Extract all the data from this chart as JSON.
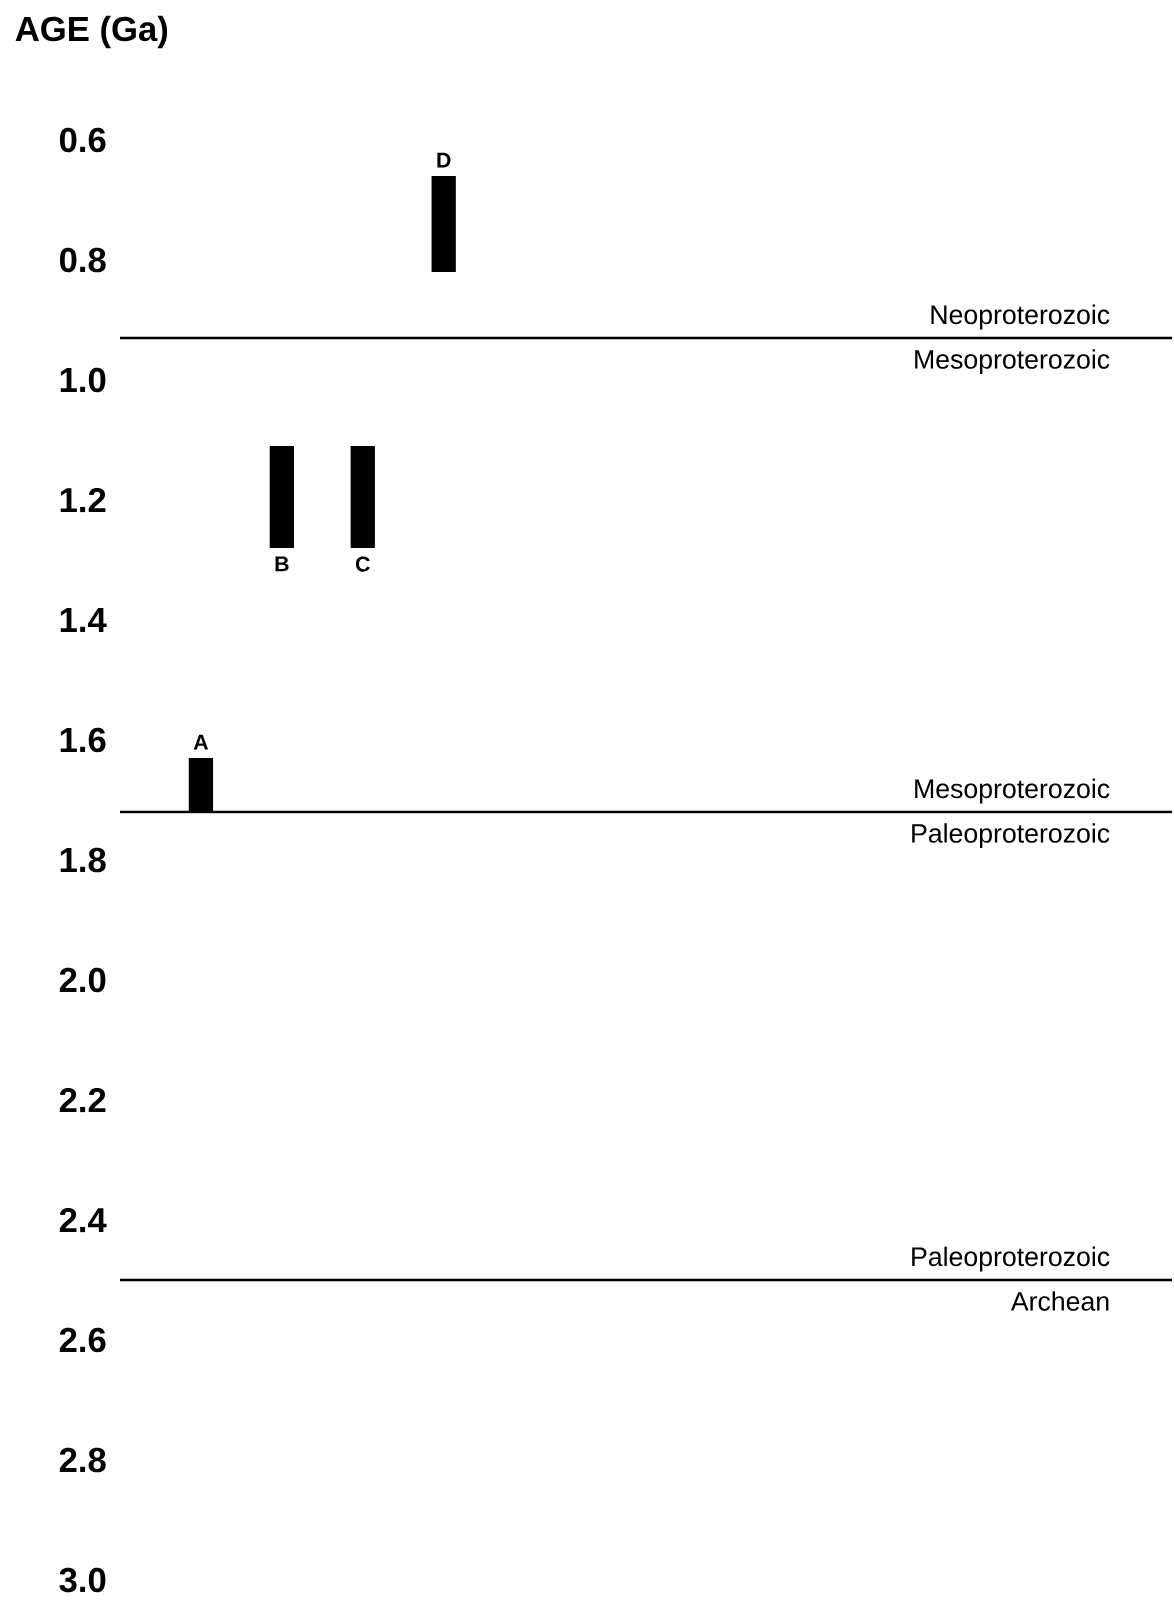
{
  "chart_data": {
    "type": "bar",
    "ylabel": "AGE (Ga)",
    "categories": [
      null,
      null,
      null,
      null
    ],
    "base": [
      1.63,
      1.11,
      1.11,
      0.66
    ],
    "values": [
      0.09,
      0.17,
      0.17,
      0.16
    ],
    "color": "#000000",
    "ylim": [
      3.0,
      0.6
    ],
    "yticks": [
      0.6,
      0.8,
      {
        "value": 1.0,
        "label": "1.0"
      },
      1.2,
      1.4,
      1.6,
      1.8,
      {
        "value": 2.0,
        "label": "2.0"
      },
      2.2,
      2.4,
      2.6,
      2.8,
      {
        "value": 3.0,
        "label": "3.0"
      }
    ],
    "ref_lines": [
      {
        "axis": "y",
        "value": 0.93,
        "label": "Neoproterozoic"
      },
      {
        "axis": "y",
        "value": 1.72,
        "label": "Mesoproterozoic"
      },
      {
        "axis": "y",
        "value": 2.5,
        "label": "Paleoproterozoic"
      }
    ],
    "annotations": [
      {
        "text": "A",
        "y": 1.63
      },
      {
        "text": "B",
        "y": 1.28
      },
      {
        "text": "C",
        "y": 1.28
      },
      {
        "text": "D",
        "y": 0.66
      },
      "Mesoproterozoic",
      "Paleoproterozoic",
      "Archean"
    ]
  }
}
